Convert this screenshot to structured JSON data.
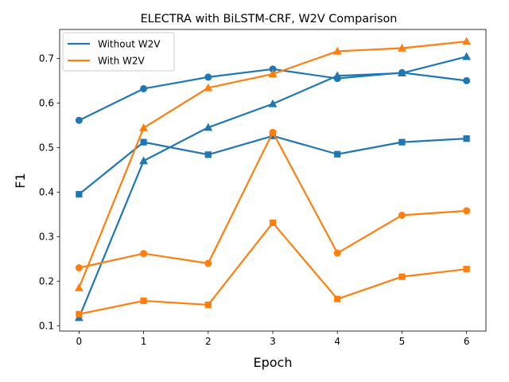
{
  "chart_data": {
    "type": "line",
    "title": "ELECTRA with BiLSTM-CRF, W2V Comparison",
    "xlabel": "Epoch",
    "ylabel": "F1",
    "x": [
      0,
      1,
      2,
      3,
      4,
      5,
      6
    ],
    "xticks": [
      "0",
      "1",
      "2",
      "3",
      "4",
      "5",
      "6"
    ],
    "yticks": [
      "0.1",
      "0.2",
      "0.3",
      "0.4",
      "0.5",
      "0.6",
      "0.7"
    ],
    "xlim": [
      -0.3,
      6.3
    ],
    "ylim": [
      0.088,
      0.765
    ],
    "grid": false,
    "legend_position": "upper-left",
    "legend": [
      "Without W2V",
      "With W2V"
    ],
    "colors": {
      "without_w2v": "#1f77b4",
      "with_w2v": "#ff7f0e"
    },
    "series": [
      {
        "group": "Without W2V",
        "color": "#1f77b4",
        "marker": "circle",
        "values": [
          0.561,
          0.632,
          0.658,
          0.676,
          0.655,
          0.668,
          0.65
        ]
      },
      {
        "group": "Without W2V",
        "color": "#1f77b4",
        "marker": "triangle",
        "values": [
          0.118,
          0.47,
          0.545,
          0.598,
          0.661,
          0.667,
          0.704
        ]
      },
      {
        "group": "Without W2V",
        "color": "#1f77b4",
        "marker": "square",
        "values": [
          0.395,
          0.512,
          0.484,
          0.526,
          0.485,
          0.512,
          0.52
        ]
      },
      {
        "group": "With W2V",
        "color": "#ff7f0e",
        "marker": "circle",
        "values": [
          0.23,
          0.262,
          0.24,
          0.534,
          0.263,
          0.348,
          0.358
        ]
      },
      {
        "group": "With W2V",
        "color": "#ff7f0e",
        "marker": "triangle",
        "values": [
          0.185,
          0.544,
          0.634,
          0.665,
          0.716,
          0.723,
          0.738
        ]
      },
      {
        "group": "With W2V",
        "color": "#ff7f0e",
        "marker": "square",
        "values": [
          0.126,
          0.156,
          0.147,
          0.331,
          0.16,
          0.21,
          0.227
        ]
      }
    ]
  }
}
